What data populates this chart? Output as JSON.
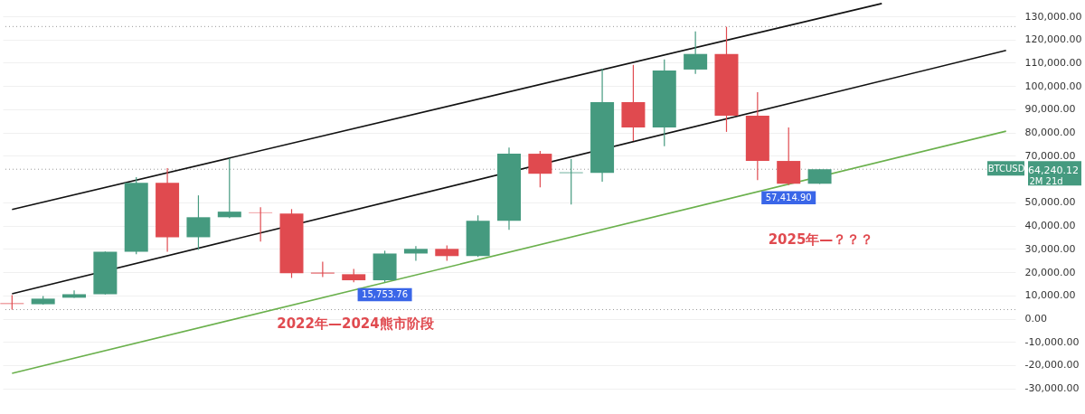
{
  "chart_data": {
    "type": "candlestick",
    "categories": [
      null,
      null,
      null,
      null,
      null,
      null,
      null,
      null,
      null,
      null,
      null,
      null,
      null,
      null,
      null,
      null,
      null,
      null,
      null,
      null,
      null,
      null,
      null,
      null,
      null,
      null,
      null,
      null,
      null,
      null,
      null,
      null,
      null
    ],
    "ohlc": [
      [
        6600,
        10100,
        3900,
        6300
      ],
      [
        6200,
        9700,
        6000,
        8600
      ],
      [
        9000,
        12100,
        8900,
        10500
      ],
      [
        10500,
        28900,
        10400,
        28800
      ],
      [
        28800,
        60800,
        27700,
        58400
      ],
      [
        58400,
        64700,
        28800,
        35000
      ],
      [
        35000,
        53000,
        29600,
        43600
      ],
      [
        43600,
        69000,
        43200,
        46000
      ],
      [
        45700,
        47900,
        33100,
        45500
      ],
      [
        45200,
        47100,
        17500,
        19500
      ],
      [
        19800,
        24500,
        17900,
        19400
      ],
      [
        19100,
        21400,
        15600,
        16500
      ],
      [
        16500,
        29200,
        15753.76,
        28000
      ],
      [
        28000,
        31200,
        24900,
        30000
      ],
      [
        30000,
        31500,
        24900,
        26900
      ],
      [
        26900,
        44400,
        26500,
        42100
      ],
      [
        42100,
        73600,
        38200,
        70900
      ],
      [
        70900,
        72100,
        56500,
        62300
      ],
      [
        62600,
        68600,
        49100,
        62900
      ],
      [
        62700,
        107500,
        58900,
        93100
      ],
      [
        93100,
        109100,
        76400,
        82200
      ],
      [
        82200,
        111400,
        74100,
        106700
      ],
      [
        107100,
        123500,
        105200,
        113800
      ],
      [
        113800,
        125500,
        80300,
        87300
      ],
      [
        87300,
        97400,
        59600,
        67800
      ],
      [
        67800,
        82200,
        57414.9,
        58000
      ],
      [
        58000,
        64300,
        57900,
        64240.12
      ],
      null,
      null,
      null,
      null,
      null,
      null
    ],
    "colors": [
      "#e04a4f",
      "#459a7f",
      "#459a7f",
      "#459a7f",
      "#459a7f",
      "#e04a4f",
      "#459a7f",
      "#459a7f",
      "#e04a4f",
      "#e04a4f",
      "#e04a4f",
      "#e04a4f",
      "#459a7f",
      "#459a7f",
      "#e04a4f",
      "#459a7f",
      "#459a7f",
      "#e04a4f",
      "#459a7f",
      "#459a7f",
      "#e04a4f",
      "#459a7f",
      "#459a7f",
      "#e04a4f",
      "#e04a4f",
      "#e04a4f",
      "#459a7f",
      null,
      null,
      null,
      null,
      null,
      null
    ],
    "series": [
      {
        "type": "line",
        "color": "#111111",
        "values": [
          46900,
          null,
          null,
          null,
          null,
          null,
          null,
          null,
          null,
          null,
          null,
          null,
          null,
          null,
          null,
          null,
          null,
          null,
          null,
          null,
          null,
          null,
          null,
          null,
          null,
          null,
          null,
          null,
          135500,
          null,
          null,
          null,
          null
        ]
      },
      {
        "type": "line",
        "color": "#111111",
        "values": [
          10700,
          null,
          null,
          null,
          null,
          null,
          null,
          null,
          null,
          null,
          null,
          null,
          null,
          null,
          null,
          null,
          null,
          null,
          null,
          null,
          null,
          null,
          null,
          null,
          null,
          null,
          null,
          null,
          null,
          null,
          null,
          null,
          115300
        ]
      },
      {
        "type": "line",
        "color": "#6ab04c",
        "values": [
          -23500,
          null,
          null,
          null,
          null,
          null,
          null,
          null,
          null,
          null,
          null,
          null,
          null,
          null,
          null,
          null,
          null,
          null,
          null,
          null,
          null,
          null,
          null,
          null,
          null,
          null,
          null,
          null,
          null,
          null,
          null,
          null,
          80600
        ]
      }
    ],
    "ylim": [
      -41000,
      137000
    ],
    "yticks": [
      {
        "value": 130000,
        "label": "130,000.00"
      },
      {
        "value": 120000,
        "label": "120,000.00"
      },
      {
        "value": 110000,
        "label": "110,000.00"
      },
      {
        "value": 100000,
        "label": "100,000.00"
      },
      {
        "value": 90000,
        "label": "90,000.00"
      },
      {
        "value": 80000,
        "label": "80,000.00"
      },
      {
        "value": 70000,
        "label": "70,000.00"
      },
      {
        "value": 50000,
        "label": "50,000.00"
      },
      {
        "value": 40000,
        "label": "40,000.00"
      },
      {
        "value": 30000,
        "label": "30,000.00"
      },
      {
        "value": 20000,
        "label": "20,000.00"
      },
      {
        "value": 10000,
        "label": "10,000.00"
      },
      {
        "value": 0,
        "label": "0.00"
      },
      {
        "value": -10000,
        "label": "-10,000.00"
      },
      {
        "value": -20000,
        "label": "-20,000.00"
      },
      {
        "value": -30000,
        "label": "-30,000.00"
      }
    ],
    "ref_lines": [
      {
        "axis": "y",
        "value": 125600,
        "line_style": "dotted",
        "color": "#999999"
      },
      {
        "axis": "y",
        "value": 64240.12,
        "line_style": "dotted",
        "color": "#999999",
        "label": "BTCUSD"
      },
      {
        "axis": "y",
        "value": 3900,
        "line_style": "dotted",
        "color": "#999999"
      }
    ],
    "annotations": [
      {
        "text": "15,753.76",
        "y": 15753.76
      },
      {
        "text": "57,414.90",
        "y": 57414.9
      },
      "2022年—2024熊市阶段",
      "2025年—？？？",
      "64,240.12",
      "2M 21d"
    ],
    "grid": "y",
    "tick_labels": "y"
  }
}
